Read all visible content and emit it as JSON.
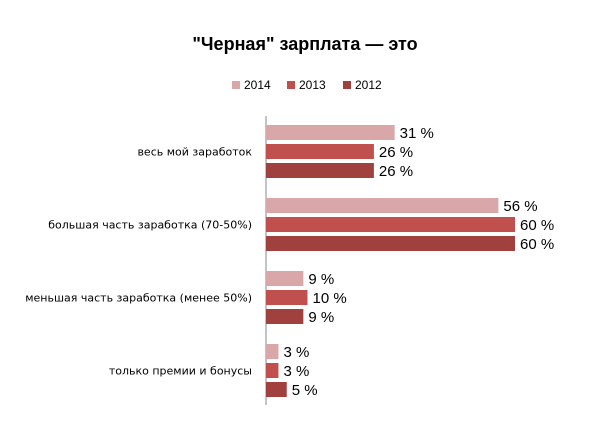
{
  "chart_data": {
    "type": "bar",
    "orientation": "horizontal",
    "title": "\"Черная\" зарплата — это",
    "categories": [
      "весь мой заработок",
      "большая часть заработка (70-50%)",
      "меньшая часть заработка (менее 50%)",
      "только премии и бонусы"
    ],
    "series": [
      {
        "name": "2014",
        "color": "#d9a7a7",
        "values": [
          31,
          56,
          9,
          3
        ]
      },
      {
        "name": "2013",
        "color": "#c0504d",
        "values": [
          26,
          60,
          10,
          3
        ]
      },
      {
        "name": "2012",
        "color": "#a0413f",
        "values": [
          26,
          60,
          9,
          5
        ]
      }
    ],
    "value_suffix": " %",
    "xlim": [
      0,
      65
    ],
    "grid": false,
    "legend_position": "top"
  }
}
